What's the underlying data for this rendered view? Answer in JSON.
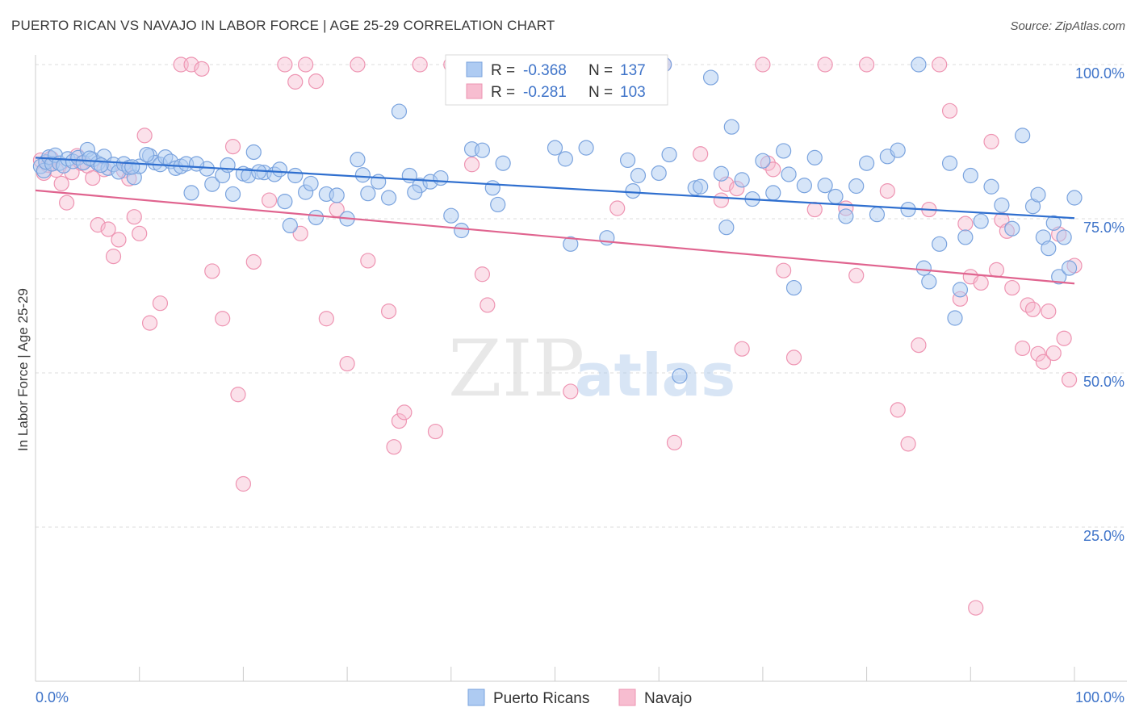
{
  "title": "PUERTO RICAN VS NAVAJO IN LABOR FORCE | AGE 25-29 CORRELATION CHART",
  "source": "Source: ZipAtlas.com",
  "watermark": {
    "zip": "ZIP",
    "atlas": "atlas"
  },
  "colors": {
    "blue_fill": "#aecbf2",
    "blue_stroke": "#7aa3de",
    "blue_line": "#2f6fcf",
    "pink_fill": "#f7bdd0",
    "pink_stroke": "#ee94b2",
    "pink_line": "#e0648f",
    "label_blue": "#3f74c9",
    "grid": "#dddddd"
  },
  "legend": {
    "rows": [
      {
        "r_label": "R =",
        "r_value": "-0.368",
        "n_label": "N =",
        "n_value": "137"
      },
      {
        "r_label": "R =",
        "r_value": "-0.281",
        "n_label": "N =",
        "n_value": "103"
      }
    ]
  },
  "chart_data": {
    "type": "scatter",
    "title": "PUERTO RICAN VS NAVAJO IN LABOR FORCE | AGE 25-29 CORRELATION CHART",
    "xlabel": "",
    "ylabel": "In Labor Force | Age 25-29",
    "xlim": [
      0,
      100
    ],
    "ylim": [
      0,
      105
    ],
    "x_tick_labels": [
      "0.0%",
      "100.0%"
    ],
    "y_ticks": [
      25,
      50,
      75,
      100
    ],
    "y_tick_labels": [
      "25.0%",
      "50.0%",
      "75.0%",
      "100.0%"
    ],
    "grid": true,
    "legend_position": "top-center",
    "series": [
      {
        "name": "Puerto Ricans",
        "r": -0.368,
        "n": 137,
        "trend": [
          [
            0,
            84.9
          ],
          [
            100,
            75.1
          ]
        ],
        "points": [
          [
            0.5,
            83.5
          ],
          [
            0.8,
            82.8
          ],
          [
            1.0,
            84.2
          ],
          [
            1.3,
            85.0
          ],
          [
            1.6,
            83.9
          ],
          [
            1.9,
            85.3
          ],
          [
            2.3,
            84.0
          ],
          [
            2.7,
            83.6
          ],
          [
            3.1,
            84.7
          ],
          [
            3.6,
            84.3
          ],
          [
            4.1,
            84.9
          ],
          [
            4.6,
            84.1
          ],
          [
            5.0,
            86.2
          ],
          [
            5.5,
            84.6
          ],
          [
            6.0,
            84.0
          ],
          [
            6.6,
            85.1
          ],
          [
            7.0,
            83.2
          ],
          [
            7.5,
            83.8
          ],
          [
            8.0,
            82.6
          ],
          [
            8.5,
            83.9
          ],
          [
            9.0,
            83.3
          ],
          [
            9.5,
            81.7
          ],
          [
            10.0,
            83.5
          ],
          [
            11.0,
            85.2
          ],
          [
            11.5,
            84.1
          ],
          [
            12.0,
            83.8
          ],
          [
            12.5,
            85.0
          ],
          [
            13.0,
            84.3
          ],
          [
            13.5,
            83.2
          ],
          [
            14.0,
            83.5
          ],
          [
            14.5,
            83.9
          ],
          [
            15.0,
            79.2
          ],
          [
            16.5,
            83.1
          ],
          [
            17.0,
            80.6
          ],
          [
            18.0,
            82.0
          ],
          [
            19.0,
            79.0
          ],
          [
            20.0,
            82.3
          ],
          [
            20.5,
            82.0
          ],
          [
            21.0,
            85.8
          ],
          [
            22.0,
            82.5
          ],
          [
            23.0,
            82.2
          ],
          [
            23.5,
            83.0
          ],
          [
            24.0,
            77.8
          ],
          [
            24.5,
            73.9
          ],
          [
            25.0,
            82.0
          ],
          [
            26.0,
            79.3
          ],
          [
            27.0,
            75.2
          ],
          [
            28.0,
            79.0
          ],
          [
            29.0,
            78.8
          ],
          [
            30.0,
            75.0
          ],
          [
            31.0,
            84.6
          ],
          [
            32.0,
            79.1
          ],
          [
            33.0,
            81.0
          ],
          [
            34.0,
            78.4
          ],
          [
            35.0,
            92.4
          ],
          [
            36.0,
            82.0
          ],
          [
            37.0,
            80.4
          ],
          [
            38.0,
            81.0
          ],
          [
            39.0,
            81.6
          ],
          [
            40.0,
            75.5
          ],
          [
            41.0,
            73.1
          ],
          [
            42.0,
            86.3
          ],
          [
            43.0,
            86.1
          ],
          [
            44.0,
            80.0
          ],
          [
            45.0,
            84.0
          ],
          [
            47.0,
            100.3
          ],
          [
            50.0,
            86.5
          ],
          [
            51.5,
            70.9
          ],
          [
            53.0,
            86.5
          ],
          [
            57.0,
            84.5
          ],
          [
            58.0,
            82.0
          ],
          [
            59.0,
            100.0
          ],
          [
            60.5,
            100.0
          ],
          [
            62.0,
            49.5
          ],
          [
            65.0,
            97.9
          ],
          [
            66.0,
            82.3
          ],
          [
            67.0,
            89.9
          ],
          [
            68.0,
            81.3
          ],
          [
            70.0,
            84.4
          ],
          [
            71.0,
            79.2
          ],
          [
            72.0,
            86.0
          ],
          [
            72.5,
            82.2
          ],
          [
            73.0,
            63.8
          ],
          [
            75.0,
            84.9
          ],
          [
            76.0,
            80.4
          ],
          [
            77.0,
            78.6
          ],
          [
            78.0,
            75.4
          ],
          [
            80.0,
            84.0
          ],
          [
            82.0,
            85.1
          ],
          [
            83.0,
            86.1
          ],
          [
            85.0,
            100.0
          ],
          [
            85.5,
            67.0
          ],
          [
            86.0,
            64.8
          ],
          [
            87.0,
            70.9
          ],
          [
            88.0,
            84.0
          ],
          [
            88.5,
            58.9
          ],
          [
            89.0,
            63.5
          ],
          [
            89.5,
            72.0
          ],
          [
            90.0,
            82.0
          ],
          [
            91.0,
            74.6
          ],
          [
            92.0,
            80.2
          ],
          [
            93.0,
            77.2
          ],
          [
            94.0,
            73.4
          ],
          [
            95.0,
            88.5
          ],
          [
            96.0,
            77.0
          ],
          [
            96.5,
            78.9
          ],
          [
            97.0,
            72.0
          ],
          [
            97.5,
            70.2
          ],
          [
            98.0,
            74.3
          ],
          [
            98.5,
            65.6
          ],
          [
            99.0,
            72.0
          ],
          [
            99.5,
            67.0
          ],
          [
            100.0,
            78.4
          ],
          [
            5.2,
            84.8
          ],
          [
            6.3,
            83.7
          ],
          [
            9.3,
            83.4
          ],
          [
            10.7,
            85.4
          ],
          [
            15.5,
            83.9
          ],
          [
            18.5,
            83.7
          ],
          [
            21.5,
            82.6
          ],
          [
            26.5,
            80.7
          ],
          [
            31.5,
            82.1
          ],
          [
            36.5,
            79.3
          ],
          [
            44.5,
            77.3
          ],
          [
            51.0,
            84.7
          ],
          [
            55.0,
            71.9
          ],
          [
            57.5,
            79.5
          ],
          [
            60.0,
            82.4
          ],
          [
            61.0,
            85.4
          ],
          [
            63.5,
            80.0
          ],
          [
            64.0,
            80.2
          ],
          [
            66.5,
            73.6
          ],
          [
            69.0,
            78.2
          ],
          [
            74.0,
            80.4
          ],
          [
            79.0,
            80.3
          ],
          [
            81.0,
            75.7
          ],
          [
            84.0,
            76.5
          ]
        ]
      },
      {
        "name": "Navajo",
        "r": -0.281,
        "n": 103,
        "trend": [
          [
            0,
            79.6
          ],
          [
            100,
            64.5
          ]
        ],
        "points": [
          [
            0.5,
            84.5
          ],
          [
            0.8,
            82.4
          ],
          [
            1.2,
            83.7
          ],
          [
            1.5,
            84.8
          ],
          [
            2.0,
            82.9
          ],
          [
            2.5,
            80.7
          ],
          [
            3.0,
            77.6
          ],
          [
            3.5,
            82.5
          ],
          [
            4.0,
            85.2
          ],
          [
            4.4,
            84.0
          ],
          [
            5.0,
            83.6
          ],
          [
            5.5,
            81.6
          ],
          [
            6.0,
            74.0
          ],
          [
            6.6,
            83.0
          ],
          [
            7.0,
            73.3
          ],
          [
            7.5,
            68.9
          ],
          [
            8.0,
            71.6
          ],
          [
            8.5,
            82.8
          ],
          [
            9.0,
            81.5
          ],
          [
            9.5,
            75.3
          ],
          [
            10.0,
            72.6
          ],
          [
            10.5,
            88.5
          ],
          [
            11.0,
            58.1
          ],
          [
            12.0,
            61.3
          ],
          [
            14.0,
            100.0
          ],
          [
            15.0,
            100.0
          ],
          [
            16.0,
            99.3
          ],
          [
            17.0,
            66.5
          ],
          [
            18.0,
            58.8
          ],
          [
            19.0,
            86.7
          ],
          [
            19.5,
            46.5
          ],
          [
            20.0,
            32.0
          ],
          [
            21.0,
            68.0
          ],
          [
            22.5,
            78.0
          ],
          [
            24.0,
            100.0
          ],
          [
            25.0,
            97.2
          ],
          [
            25.5,
            72.6
          ],
          [
            26.0,
            100.0
          ],
          [
            27.0,
            97.3
          ],
          [
            28.0,
            58.8
          ],
          [
            29.0,
            76.5
          ],
          [
            30.0,
            51.5
          ],
          [
            31.0,
            100.0
          ],
          [
            32.0,
            68.2
          ],
          [
            34.0,
            60.0
          ],
          [
            34.5,
            38.0
          ],
          [
            35.0,
            42.2
          ],
          [
            35.5,
            43.6
          ],
          [
            37.0,
            100.0
          ],
          [
            38.5,
            40.5
          ],
          [
            40.0,
            100.0
          ],
          [
            42.0,
            83.8
          ],
          [
            43.0,
            66.0
          ],
          [
            43.5,
            61.0
          ],
          [
            48.0,
            100.0
          ],
          [
            51.5,
            47.0
          ],
          [
            54.0,
            100.0
          ],
          [
            56.0,
            76.7
          ],
          [
            60.5,
            100.0
          ],
          [
            61.5,
            38.7
          ],
          [
            64.0,
            85.5
          ],
          [
            66.0,
            78.0
          ],
          [
            68.0,
            53.9
          ],
          [
            70.0,
            100.0
          ],
          [
            70.5,
            84.0
          ],
          [
            71.0,
            83.0
          ],
          [
            72.0,
            66.6
          ],
          [
            73.0,
            52.5
          ],
          [
            75.0,
            76.5
          ],
          [
            76.0,
            100.0
          ],
          [
            78.0,
            76.7
          ],
          [
            79.0,
            65.8
          ],
          [
            80.0,
            100.0
          ],
          [
            82.0,
            79.5
          ],
          [
            83.0,
            44.0
          ],
          [
            84.0,
            38.5
          ],
          [
            85.0,
            54.5
          ],
          [
            86.0,
            76.5
          ],
          [
            87.0,
            100.0
          ],
          [
            88.0,
            92.5
          ],
          [
            89.0,
            62.0
          ],
          [
            90.0,
            65.6
          ],
          [
            90.5,
            11.9
          ],
          [
            91.0,
            64.6
          ],
          [
            92.0,
            87.5
          ],
          [
            92.5,
            66.7
          ],
          [
            93.0,
            74.8
          ],
          [
            93.5,
            73.0
          ],
          [
            94.0,
            63.8
          ],
          [
            95.0,
            54.0
          ],
          [
            95.5,
            61.0
          ],
          [
            96.0,
            60.3
          ],
          [
            96.5,
            53.1
          ],
          [
            97.0,
            51.8
          ],
          [
            97.5,
            60.0
          ],
          [
            98.0,
            53.2
          ],
          [
            98.5,
            72.5
          ],
          [
            99.0,
            55.6
          ],
          [
            99.5,
            48.9
          ],
          [
            100.0,
            67.4
          ],
          [
            66.5,
            80.6
          ],
          [
            67.5,
            79.9
          ],
          [
            89.5,
            74.2
          ]
        ]
      }
    ]
  },
  "bottom_legend": [
    {
      "label": "Puerto Ricans"
    },
    {
      "label": "Navajo"
    }
  ]
}
